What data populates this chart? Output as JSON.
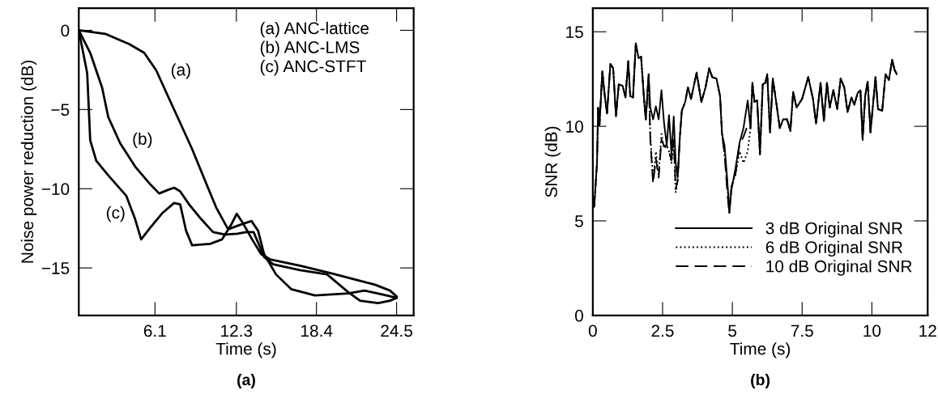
{
  "chart_data": [
    {
      "type": "line",
      "title": "(a)",
      "xlabel": "Time (s)",
      "ylabel": "Noise power reduction (dB)",
      "xlim": [
        0.3,
        25.8
      ],
      "ylim": [
        -18,
        1.4
      ],
      "xticks": [
        6.1,
        12.3,
        18.4,
        24.5
      ],
      "yticks": [
        0,
        {
          "value": -5,
          "label": "−5"
        },
        {
          "value": -10,
          "label": "−10"
        },
        {
          "value": -15,
          "label": "−15"
        }
      ],
      "grid": false,
      "legend": false,
      "line_style": "solid",
      "marker": "none",
      "series": [
        {
          "color": "#000000",
          "x": [
            0.3,
            2.31,
            4.14,
            5.28,
            6.19,
            7.1,
            8.02,
            8.93,
            9.84,
            10.76,
            11.67,
            12.58,
            13.45,
            13.95,
            14.41,
            15.32,
            16.47,
            18.29,
            20.8,
            22.06,
            23.54,
            24.5
          ],
          "values": [
            0,
            -0.22,
            -0.87,
            -1.42,
            -2.52,
            -4.18,
            -5.84,
            -7.5,
            -9.34,
            -11.18,
            -12.56,
            -12.28,
            -12.04,
            -12.65,
            -14.13,
            -15.41,
            -16.34,
            -16.74,
            -16.61,
            -16.43,
            -16.7,
            -16.89
          ]
        },
        {
          "color": "#000000",
          "x": [
            0.3,
            1.17,
            2.08,
            2.54,
            3.45,
            4.59,
            5.73,
            6.42,
            7.1,
            7.56,
            8.02,
            8.7,
            9.62,
            10.53,
            11.44,
            12.36,
            13.04,
            13.61,
            13.95,
            14.41,
            15.1,
            17.15,
            19.21,
            20.8,
            21.72,
            23.09,
            24.0,
            24.5
          ],
          "values": [
            0,
            -1.42,
            -3.63,
            -5.47,
            -7.13,
            -8.6,
            -9.71,
            -10.3,
            -10.07,
            -9.94,
            -10.17,
            -10.99,
            -11.92,
            -12.74,
            -12.89,
            -12.84,
            -12.74,
            -12.74,
            -13.39,
            -14.31,
            -14.77,
            -15.14,
            -15.41,
            -16.52,
            -17.07,
            -17.22,
            -17.07,
            -16.89
          ]
        },
        {
          "color": "#000000",
          "x": [
            0.3,
            0.94,
            1.17,
            1.63,
            2.54,
            3.91,
            4.59,
            5.05,
            5.73,
            6.65,
            7.56,
            8.02,
            8.47,
            8.93,
            10.3,
            11.21,
            11.9,
            12.33,
            12.81,
            13.5,
            14.18,
            14.87,
            17.15,
            19.43,
            22.86,
            24.0,
            24.5
          ],
          "values": [
            0,
            -2.71,
            -6.94,
            -8.23,
            -9.15,
            -10.44,
            -11.92,
            -13.2,
            -12.47,
            -11.55,
            -10.9,
            -10.99,
            -12.65,
            -13.57,
            -13.48,
            -13.2,
            -12.28,
            -11.58,
            -12.19,
            -13.2,
            -14.13,
            -14.46,
            -14.86,
            -15.32,
            -16.06,
            -16.43,
            -16.8
          ]
        }
      ],
      "annotations": [
        "(a)",
        "(b)",
        "(c)",
        "(a) ANC-lattice",
        "(b) ANC-LMS",
        "(c) ANC-STFT"
      ]
    },
    {
      "type": "line",
      "title": "(b)",
      "xlabel": "Time (s)",
      "ylabel": "SNR (dB)",
      "xlim": [
        0,
        12
      ],
      "ylim": [
        0,
        16.25
      ],
      "xticks": [
        0,
        2.5,
        5,
        7.5,
        10,
        12
      ],
      "yticks": [
        0,
        5,
        10,
        15
      ],
      "grid": false,
      "legend": "bottom right",
      "marker": "none",
      "x": [
        0.0,
        0.05,
        0.15,
        0.19,
        0.24,
        0.34,
        0.44,
        0.51,
        0.63,
        0.73,
        0.83,
        0.93,
        1.07,
        1.17,
        1.27,
        1.34,
        1.44,
        1.54,
        1.64,
        1.73,
        1.85,
        1.9,
        2.0,
        2.06,
        2.16,
        2.26,
        2.36,
        2.46,
        2.55,
        2.65,
        2.73,
        2.82,
        2.9,
        2.97,
        3.04,
        3.12,
        3.19,
        3.31,
        3.41,
        3.52,
        3.72,
        3.89,
        4.04,
        4.17,
        4.28,
        4.43,
        4.56,
        4.63,
        4.72,
        4.82,
        4.89,
        4.97,
        5.11,
        5.26,
        5.4,
        5.55,
        5.65,
        5.72,
        5.79,
        5.89,
        5.99,
        6.09,
        6.18,
        6.25,
        6.35,
        6.45,
        6.57,
        6.7,
        6.82,
        6.96,
        7.08,
        7.18,
        7.3,
        7.5,
        7.72,
        7.89,
        8.0,
        8.16,
        8.28,
        8.39,
        8.49,
        8.62,
        8.76,
        8.88,
        9.01,
        9.13,
        9.27,
        9.37,
        9.49,
        9.59,
        9.67,
        9.76,
        9.85,
        9.95,
        10.13,
        10.22,
        10.37,
        10.49,
        10.61,
        10.73,
        10.81,
        10.89
      ],
      "series": [
        {
          "name": "3 dB Original SNR",
          "color": "#000000",
          "line_style": "solid",
          "values": [
            5.9,
            5.75,
            8.06,
            10.99,
            10.06,
            12.91,
            11.45,
            10.68,
            13.3,
            13.07,
            10.52,
            12.22,
            12.14,
            11.53,
            13.45,
            11.6,
            11.53,
            14.38,
            13.61,
            13.68,
            11.14,
            10.37,
            12.76,
            10.99,
            10.37,
            11.06,
            10.37,
            11.91,
            10.22,
            8.98,
            10.6,
            8.52,
            10.52,
            8.06,
            7.29,
            9.45,
            10.83,
            11.29,
            12.06,
            11.45,
            12.84,
            11.29,
            12.06,
            13.07,
            12.6,
            12.53,
            11.6,
            9.6,
            8.98,
            7.13,
            5.44,
            6.67,
            7.75,
            9.14,
            9.91,
            11.37,
            9.91,
            12.3,
            11.29,
            11.37,
            8.52,
            12.22,
            12.3,
            12.76,
            9.68,
            12.53,
            11.29,
            9.91,
            10.37,
            10.37,
            9.75,
            11.83,
            10.99,
            11.45,
            12.6,
            11.45,
            10.14,
            12.3,
            10.29,
            12.3,
            10.99,
            11.91,
            10.91,
            12.53,
            12.06,
            10.75,
            11.53,
            11.14,
            11.76,
            11.91,
            9.29,
            11.6,
            12.37,
            9.68,
            12.6,
            10.91,
            10.83,
            12.76,
            12.45,
            13.53,
            13.0,
            12.76
          ]
        },
        {
          "name": "6 dB Original SNR",
          "color": "#000000",
          "line_style": "dotted",
          "values": [
            5.9,
            5.75,
            8.06,
            10.99,
            10.06,
            12.91,
            11.45,
            10.68,
            13.3,
            13.07,
            10.52,
            12.22,
            12.14,
            11.53,
            13.45,
            11.6,
            11.53,
            14.38,
            13.61,
            13.68,
            11.14,
            10.37,
            12.76,
            9.6,
            7.13,
            8.67,
            7.44,
            9.6,
            8.83,
            8.98,
            8.67,
            8.06,
            9.29,
            6.52,
            7.13,
            9.45,
            10.83,
            11.29,
            12.06,
            11.45,
            12.84,
            11.29,
            12.06,
            13.07,
            12.6,
            12.53,
            11.6,
            9.6,
            8.52,
            6.83,
            5.9,
            6.83,
            7.44,
            8.67,
            8.06,
            8.67,
            9.91,
            12.3,
            11.29,
            11.37,
            8.52,
            12.22,
            12.3,
            12.76,
            9.68,
            12.53,
            11.29,
            9.91,
            10.37,
            10.37,
            9.75,
            11.83,
            10.99,
            11.45,
            12.6,
            11.45,
            10.14,
            12.3,
            10.29,
            12.3,
            10.99,
            11.91,
            10.91,
            12.53,
            12.06,
            10.75,
            11.53,
            11.14,
            11.76,
            11.91,
            9.29,
            11.6,
            12.37,
            9.68,
            12.6,
            10.91,
            10.83,
            12.76,
            12.45,
            13.53,
            13.0,
            12.76
          ]
        },
        {
          "name": "10 dB Original SNR",
          "color": "#000000",
          "line_style": "dashed",
          "values": [
            5.9,
            5.75,
            8.06,
            10.99,
            10.06,
            12.91,
            11.45,
            10.68,
            13.3,
            13.07,
            10.52,
            12.22,
            12.14,
            11.53,
            13.45,
            11.6,
            11.53,
            14.38,
            13.61,
            13.68,
            11.14,
            10.37,
            12.76,
            9.29,
            6.98,
            8.29,
            7.29,
            9.29,
            8.98,
            8.98,
            8.67,
            8.21,
            9.29,
            6.67,
            7.13,
            9.45,
            10.83,
            11.29,
            12.06,
            11.45,
            12.84,
            11.29,
            12.06,
            13.07,
            12.6,
            12.53,
            11.6,
            9.6,
            8.52,
            6.52,
            5.36,
            6.83,
            7.44,
            9.06,
            9.45,
            10.06,
            9.91,
            12.3,
            11.29,
            11.37,
            8.52,
            12.22,
            12.3,
            12.76,
            9.68,
            12.53,
            11.29,
            9.91,
            10.37,
            10.37,
            9.75,
            11.83,
            10.99,
            11.45,
            12.6,
            11.45,
            10.14,
            12.3,
            10.29,
            12.3,
            10.99,
            11.91,
            10.91,
            12.53,
            12.06,
            10.75,
            11.53,
            11.14,
            11.76,
            11.91,
            9.29,
            11.6,
            12.37,
            9.68,
            12.6,
            10.91,
            10.83,
            12.76,
            12.45,
            13.53,
            13.0,
            12.76
          ]
        }
      ]
    }
  ]
}
